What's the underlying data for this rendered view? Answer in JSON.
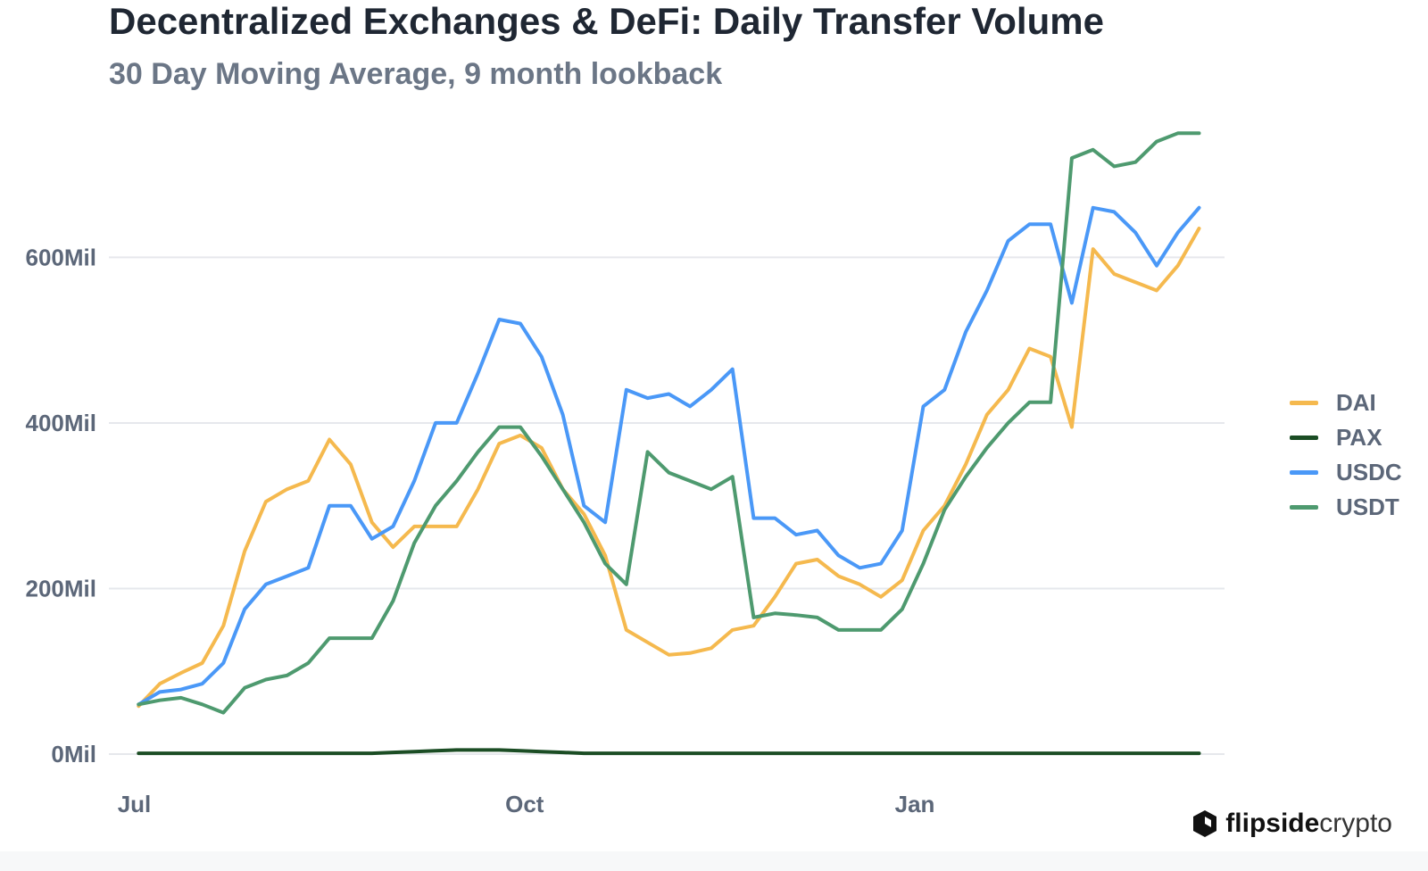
{
  "header": {
    "title": "Decentralized Exchanges & DeFi: Daily Transfer Volume",
    "subtitle": "30 Day Moving Average, 9 month lookback"
  },
  "brand": {
    "name_bold": "flipside",
    "name_light": "crypto"
  },
  "chart_data": {
    "type": "line",
    "title": "Decentralized Exchanges & DeFi: Daily Transfer Volume",
    "subtitle": "30 Day Moving Average, 9 month lookback",
    "xlabel": "",
    "ylabel": "",
    "x_ticks": [
      "Jul",
      "Oct",
      "Jan"
    ],
    "x_tick_dates": [
      "Jul 1",
      "Oct 1",
      "Jan 1"
    ],
    "y_ticks": [
      0,
      200,
      400,
      600
    ],
    "y_tick_labels": [
      "0Mil",
      "200Mil",
      "400Mil",
      "600Mil"
    ],
    "y_unit": "Mil",
    "ylim": [
      0,
      760
    ],
    "xlim": [
      "Jun 25",
      "Mar 15"
    ],
    "grid": "horizontal",
    "legend_position": "right",
    "x": [
      "Jul 2",
      "Jul 7",
      "Jul 12",
      "Jul 17",
      "Jul 22",
      "Jul 27",
      "Aug 1",
      "Aug 6",
      "Aug 11",
      "Aug 16",
      "Aug 21",
      "Aug 26",
      "Aug 31",
      "Sep 5",
      "Sep 10",
      "Sep 15",
      "Sep 20",
      "Sep 25",
      "Sep 30",
      "Oct 5",
      "Oct 10",
      "Oct 15",
      "Oct 20",
      "Oct 25",
      "Oct 30",
      "Nov 4",
      "Nov 9",
      "Nov 14",
      "Nov 19",
      "Nov 24",
      "Nov 29",
      "Dec 4",
      "Dec 9",
      "Dec 14",
      "Dec 19",
      "Dec 24",
      "Dec 29",
      "Jan 3",
      "Jan 8",
      "Jan 13",
      "Jan 18",
      "Jan 23",
      "Jan 28",
      "Feb 2",
      "Feb 7",
      "Feb 12",
      "Feb 17",
      "Feb 22",
      "Feb 27",
      "Mar 4",
      "Mar 9"
    ],
    "series": [
      {
        "name": "DAI",
        "color": "#f5b94e",
        "values": [
          58,
          85,
          98,
          110,
          155,
          245,
          305,
          320,
          330,
          380,
          350,
          280,
          250,
          275,
          275,
          275,
          320,
          375,
          385,
          370,
          320,
          290,
          240,
          150,
          135,
          120,
          122,
          128,
          150,
          155,
          190,
          230,
          235,
          215,
          205,
          190,
          210,
          270,
          300,
          350,
          410,
          440,
          490,
          480,
          395,
          610,
          580,
          570,
          560,
          590,
          635
        ]
      },
      {
        "name": "PAX",
        "color": "#1b4d24",
        "values": [
          1,
          1,
          1,
          1,
          1,
          1,
          1,
          1,
          1,
          1,
          1,
          1,
          2,
          3,
          4,
          5,
          5,
          5,
          4,
          3,
          2,
          1,
          1,
          1,
          1,
          1,
          1,
          1,
          1,
          1,
          1,
          1,
          1,
          1,
          1,
          1,
          1,
          1,
          1,
          1,
          1,
          1,
          1,
          1,
          1,
          1,
          1,
          1,
          1,
          1,
          1
        ]
      },
      {
        "name": "USDC",
        "color": "#4a98f7",
        "values": [
          60,
          75,
          78,
          85,
          110,
          175,
          205,
          215,
          225,
          300,
          300,
          260,
          275,
          330,
          400,
          400,
          460,
          525,
          520,
          480,
          410,
          300,
          280,
          440,
          430,
          435,
          420,
          440,
          465,
          285,
          285,
          265,
          270,
          240,
          225,
          230,
          270,
          420,
          440,
          510,
          560,
          620,
          640,
          640,
          545,
          660,
          655,
          630,
          590,
          630,
          660
        ]
      },
      {
        "name": "USDT",
        "color": "#4e9a6f",
        "values": [
          60,
          65,
          68,
          60,
          50,
          80,
          90,
          95,
          110,
          140,
          140,
          140,
          185,
          255,
          300,
          330,
          365,
          395,
          395,
          360,
          320,
          280,
          230,
          205,
          365,
          340,
          330,
          320,
          335,
          165,
          170,
          168,
          165,
          150,
          150,
          150,
          175,
          230,
          295,
          335,
          370,
          400,
          425,
          425,
          720,
          730,
          710,
          715,
          740,
          750,
          750
        ]
      }
    ]
  }
}
